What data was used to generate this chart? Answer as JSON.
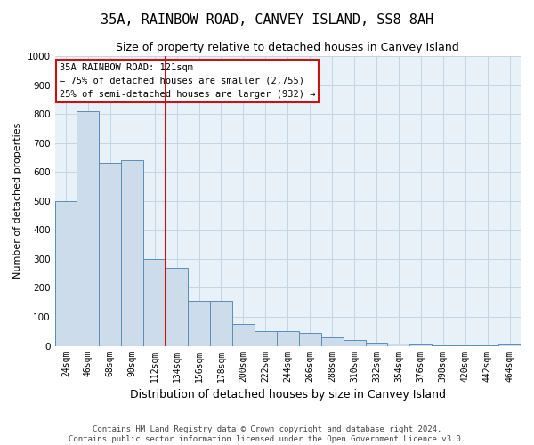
{
  "title": "35A, RAINBOW ROAD, CANVEY ISLAND, SS8 8AH",
  "subtitle": "Size of property relative to detached houses in Canvey Island",
  "xlabel": "Distribution of detached houses by size in Canvey Island",
  "ylabel": "Number of detached properties",
  "footer_line1": "Contains HM Land Registry data © Crown copyright and database right 2024.",
  "footer_line2": "Contains public sector information licensed under the Open Government Licence v3.0.",
  "categories": [
    "24sqm",
    "46sqm",
    "68sqm",
    "90sqm",
    "112sqm",
    "134sqm",
    "156sqm",
    "178sqm",
    "200sqm",
    "222sqm",
    "244sqm",
    "266sqm",
    "288sqm",
    "310sqm",
    "332sqm",
    "354sqm",
    "376sqm",
    "398sqm",
    "420sqm",
    "442sqm",
    "464sqm"
  ],
  "values": [
    500,
    810,
    630,
    640,
    300,
    270,
    155,
    155,
    75,
    50,
    50,
    45,
    30,
    20,
    12,
    8,
    5,
    3,
    2,
    1,
    5
  ],
  "bar_color": "#cddceb",
  "bar_edge_color": "#5b8db8",
  "grid_color": "#c5d5e5",
  "background_color": "#e8f0f8",
  "ylim": [
    0,
    1000
  ],
  "yticks": [
    0,
    100,
    200,
    300,
    400,
    500,
    600,
    700,
    800,
    900,
    1000
  ],
  "vline_x_index": 4.5,
  "vline_color": "#cc1111",
  "annotation_text": "35A RAINBOW ROAD: 121sqm\n← 75% of detached houses are smaller (2,755)\n25% of semi-detached houses are larger (932) →",
  "annotation_box_color": "white",
  "annotation_box_edge_color": "#cc1111",
  "title_fontsize": 11,
  "subtitle_fontsize": 9,
  "ylabel_fontsize": 8,
  "xlabel_fontsize": 9,
  "tick_fontsize": 7,
  "annotation_fontsize": 7.5,
  "footer_fontsize": 6.5
}
